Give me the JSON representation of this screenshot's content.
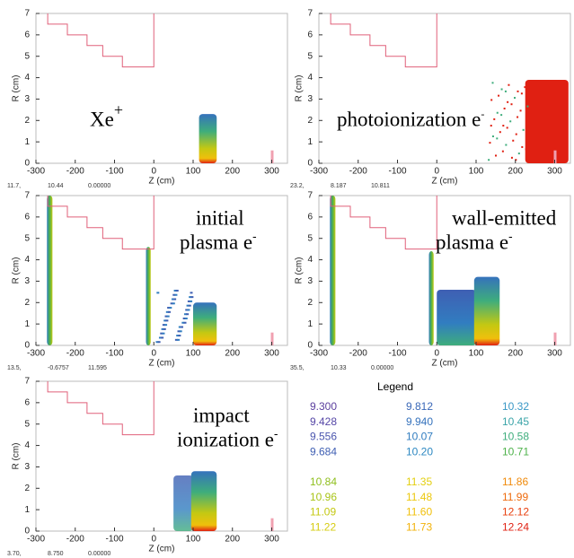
{
  "axes": {
    "xlabel": "Z (cm)",
    "ylabel": "R (cm)",
    "xlim": [
      -300,
      340
    ],
    "ylim": [
      0,
      7
    ],
    "xticks": [
      -300,
      -200,
      -100,
      0,
      100,
      200,
      300
    ],
    "yticks": [
      0,
      1,
      2,
      3,
      4,
      5,
      6,
      7
    ]
  },
  "panels": [
    {
      "label_lines": [
        "Xe"
      ],
      "sup": "+",
      "footer": [
        "11.7,",
        "10.44",
        "0.00000"
      ]
    },
    {
      "label_lines": [
        "photoionization e"
      ],
      "sup": "-",
      "footer": [
        "23.2,",
        "8.187",
        "10.811"
      ]
    },
    {
      "label_lines": [
        "initial",
        "plasma e"
      ],
      "sup": "-",
      "footer": [
        "13.5,",
        "-0.6757",
        "11.595"
      ]
    },
    {
      "label_lines": [
        "wall-emitted",
        "plasma e"
      ],
      "sup": "-",
      "footer": [
        "35.5,",
        "10.33",
        "0.00000"
      ]
    },
    {
      "label_lines": [
        "impact",
        "ionization e"
      ],
      "sup": "-",
      "footer": [
        "3.70,",
        "8.750",
        "0.00000"
      ]
    }
  ],
  "legend": {
    "title": "Legend",
    "entries": [
      {
        "label": "9.300",
        "color": "#5b3f9e"
      },
      {
        "label": "9.428",
        "color": "#5546a6"
      },
      {
        "label": "9.556",
        "color": "#4a55ae"
      },
      {
        "label": "9.684",
        "color": "#3f5fb3"
      },
      {
        "label": "9.812",
        "color": "#3a68b8"
      },
      {
        "label": "9.940",
        "color": "#3572bc"
      },
      {
        "label": "10.07",
        "color": "#317dc0"
      },
      {
        "label": "10.20",
        "color": "#2d88c2"
      },
      {
        "label": "10.32",
        "color": "#3a98c6"
      },
      {
        "label": "10.45",
        "color": "#3aa4a8"
      },
      {
        "label": "10.58",
        "color": "#3ead7c"
      },
      {
        "label": "10.71",
        "color": "#4db24a"
      },
      {
        "label": "10.84",
        "color": "#8fbf1e"
      },
      {
        "label": "10.96",
        "color": "#a9c418"
      },
      {
        "label": "11.09",
        "color": "#c4c812"
      },
      {
        "label": "11.22",
        "color": "#d6cc10"
      },
      {
        "label": "11.35",
        "color": "#e3cf10"
      },
      {
        "label": "11.48",
        "color": "#ecc80e"
      },
      {
        "label": "11.60",
        "color": "#f0c00c"
      },
      {
        "label": "11.73",
        "color": "#f2b20a"
      },
      {
        "label": "11.86",
        "color": "#f08a0a"
      },
      {
        "label": "11.99",
        "color": "#ee6a0c"
      },
      {
        "label": "12.12",
        "color": "#e8400f"
      },
      {
        "label": "12.24",
        "color": "#e02012"
      }
    ]
  }
}
